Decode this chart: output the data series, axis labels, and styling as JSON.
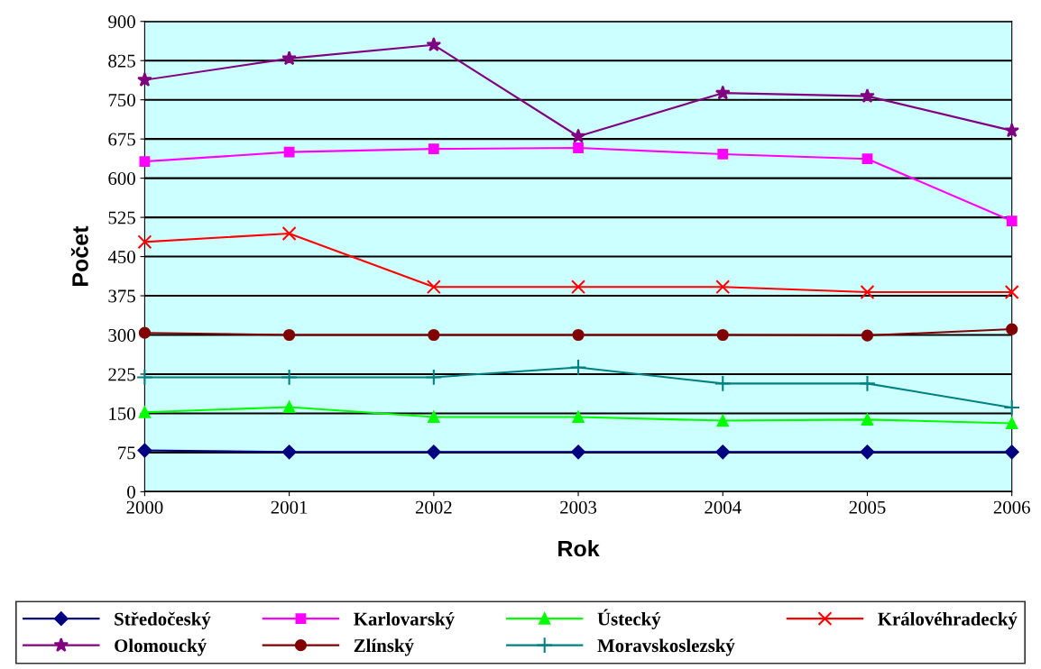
{
  "chart_data": {
    "type": "line",
    "xlabel": "Rok",
    "ylabel": "Počet",
    "x": [
      2000,
      2001,
      2002,
      2003,
      2004,
      2005,
      2006
    ],
    "xlim": [
      2000,
      2006
    ],
    "xticks": [
      2000,
      2001,
      2002,
      2003,
      2004,
      2005,
      2006
    ],
    "ylim": [
      0,
      900
    ],
    "yticks": [
      0,
      75,
      150,
      225,
      300,
      375,
      450,
      525,
      600,
      675,
      750,
      825,
      900
    ],
    "grid": "y",
    "legend": "bottom",
    "series": [
      {
        "name": "Středočeský",
        "color": "#000080",
        "marker": "diamond",
        "values": [
          79,
          76,
          76,
          76,
          76,
          76,
          76
        ]
      },
      {
        "name": "Karlovarský",
        "color": "#ff00ff",
        "marker": "square",
        "values": [
          632,
          650,
          656,
          658,
          646,
          637,
          518
        ]
      },
      {
        "name": "Ústecký",
        "color": "#00ff00",
        "marker": "triangle",
        "values": [
          152,
          162,
          143,
          143,
          136,
          138,
          131
        ]
      },
      {
        "name": "Královéhradecký",
        "color": "#ff0000",
        "marker": "cross",
        "values": [
          478,
          494,
          392,
          392,
          392,
          382,
          382
        ]
      },
      {
        "name": "Olomoucký",
        "color": "#800080",
        "marker": "star",
        "values": [
          788,
          829,
          855,
          680,
          763,
          757,
          691
        ]
      },
      {
        "name": "Zlínský",
        "color": "#800000",
        "marker": "circle",
        "values": [
          304,
          300,
          300,
          300,
          300,
          299,
          311
        ]
      },
      {
        "name": "Moravskoslezský",
        "color": "#008080",
        "marker": "plus",
        "values": [
          219,
          219,
          219,
          238,
          207,
          207,
          161
        ]
      }
    ]
  }
}
